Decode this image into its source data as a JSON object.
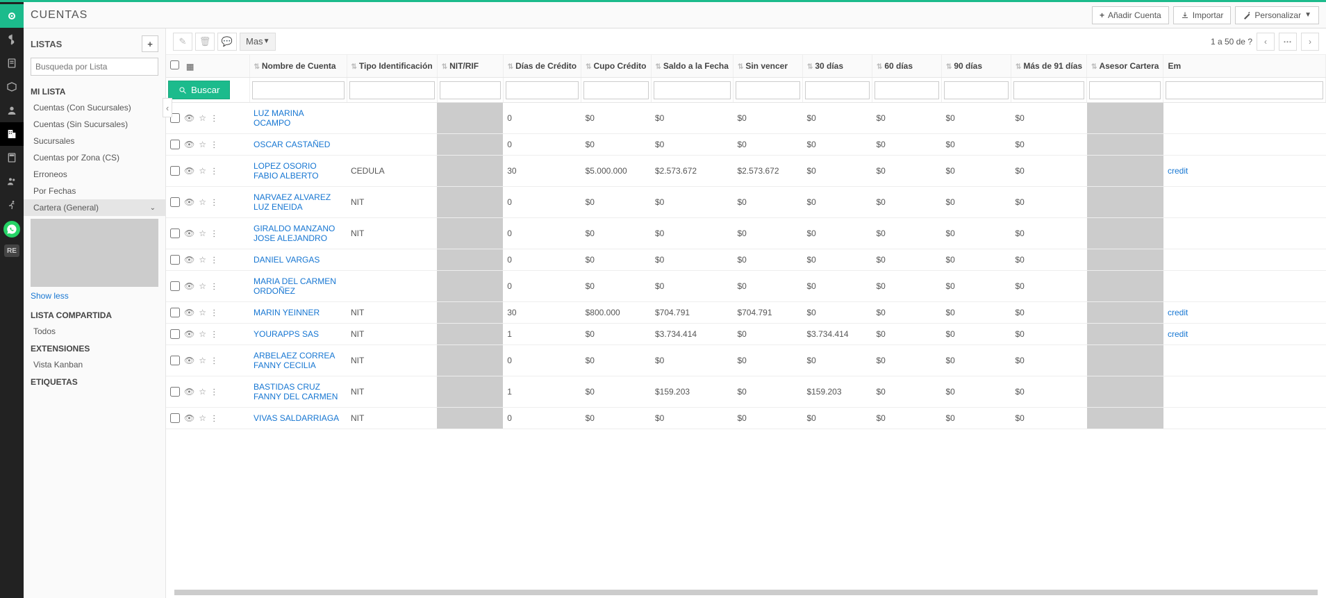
{
  "page_title": "CUENTAS",
  "top_buttons": {
    "add": "Añadir Cuenta",
    "import": "Importar",
    "customize": "Personalizar"
  },
  "rail": {
    "badge": "RE"
  },
  "sidebar": {
    "lists_title": "LISTAS",
    "search_placeholder": "Busqueda por Lista",
    "mylist_title": "MI LISTA",
    "items": [
      "Cuentas (Con Sucursales)",
      "Cuentas (Sin Sucursales)",
      "Sucursales",
      "Cuentas por Zona (CS)",
      "Erroneos",
      "Por Fechas",
      "Cartera (General)"
    ],
    "show_less": "Show less",
    "shared_title": "LISTA COMPARTIDA",
    "shared_item": "Todos",
    "ext_title": "EXTENSIONES",
    "ext_item": "Vista Kanban",
    "tags_title": "ETIQUETAS"
  },
  "toolbar": {
    "mas": "Mas",
    "search": "Buscar",
    "pager_text": "1 a 50  de  ?"
  },
  "columns": [
    "Nombre de Cuenta",
    "Tipo Identificación",
    "NIT/RIF",
    "Días de Crédito",
    "Cupo Crédito",
    "Saldo a la Fecha",
    "Sin vencer",
    "30 días",
    "60 días",
    "90 días",
    "Más de 91 días",
    "Asesor Cartera",
    "Em"
  ],
  "rows": [
    {
      "name": "LUZ MARINA OCAMPO",
      "tipo": "",
      "dias": "0",
      "cupo": "$0",
      "saldo": "$0",
      "sin": "$0",
      "d30": "$0",
      "d60": "$0",
      "d90": "$0",
      "d91": "$0",
      "ext": ""
    },
    {
      "name": "OSCAR CASTAÑED",
      "tipo": "",
      "dias": "0",
      "cupo": "$0",
      "saldo": "$0",
      "sin": "$0",
      "d30": "$0",
      "d60": "$0",
      "d90": "$0",
      "d91": "$0",
      "ext": ""
    },
    {
      "name": "LOPEZ OSORIO FABIO ALBERTO",
      "tipo": "CEDULA",
      "dias": "30",
      "cupo": "$5.000.000",
      "saldo": "$2.573.672",
      "sin": "$2.573.672",
      "d30": "$0",
      "d60": "$0",
      "d90": "$0",
      "d91": "$0",
      "ext": "credit"
    },
    {
      "name": "NARVAEZ ALVAREZ LUZ ENEIDA",
      "tipo": "NIT",
      "dias": "0",
      "cupo": "$0",
      "saldo": "$0",
      "sin": "$0",
      "d30": "$0",
      "d60": "$0",
      "d90": "$0",
      "d91": "$0",
      "ext": ""
    },
    {
      "name": "GIRALDO MANZANO JOSE ALEJANDRO",
      "tipo": "NIT",
      "dias": "0",
      "cupo": "$0",
      "saldo": "$0",
      "sin": "$0",
      "d30": "$0",
      "d60": "$0",
      "d90": "$0",
      "d91": "$0",
      "ext": ""
    },
    {
      "name": "DANIEL VARGAS",
      "tipo": "",
      "dias": "0",
      "cupo": "$0",
      "saldo": "$0",
      "sin": "$0",
      "d30": "$0",
      "d60": "$0",
      "d90": "$0",
      "d91": "$0",
      "ext": ""
    },
    {
      "name": "MARIA DEL CARMEN ORDOÑEZ",
      "tipo": "",
      "dias": "0",
      "cupo": "$0",
      "saldo": "$0",
      "sin": "$0",
      "d30": "$0",
      "d60": "$0",
      "d90": "$0",
      "d91": "$0",
      "ext": ""
    },
    {
      "name": "MARIN YEINNER",
      "tipo": "NIT",
      "dias": "30",
      "cupo": "$800.000",
      "saldo": "$704.791",
      "sin": "$704.791",
      "d30": "$0",
      "d60": "$0",
      "d90": "$0",
      "d91": "$0",
      "ext": "credit"
    },
    {
      "name": "YOURAPPS SAS",
      "tipo": "NIT",
      "dias": "1",
      "cupo": "$0",
      "saldo": "$3.734.414",
      "sin": "$0",
      "d30": "$3.734.414",
      "d60": "$0",
      "d90": "$0",
      "d91": "$0",
      "ext": "credit"
    },
    {
      "name": "ARBELAEZ CORREA FANNY CECILIA",
      "tipo": "NIT",
      "dias": "0",
      "cupo": "$0",
      "saldo": "$0",
      "sin": "$0",
      "d30": "$0",
      "d60": "$0",
      "d90": "$0",
      "d91": "$0",
      "ext": ""
    },
    {
      "name": "BASTIDAS CRUZ FANNY DEL CARMEN",
      "tipo": "NIT",
      "dias": "1",
      "cupo": "$0",
      "saldo": "$159.203",
      "sin": "$0",
      "d30": "$159.203",
      "d60": "$0",
      "d90": "$0",
      "d91": "$0",
      "ext": ""
    },
    {
      "name": "VIVAS SALDARRIAGA",
      "tipo": "NIT",
      "dias": "0",
      "cupo": "$0",
      "saldo": "$0",
      "sin": "$0",
      "d30": "$0",
      "d60": "$0",
      "d90": "$0",
      "d91": "$0",
      "ext": ""
    }
  ]
}
